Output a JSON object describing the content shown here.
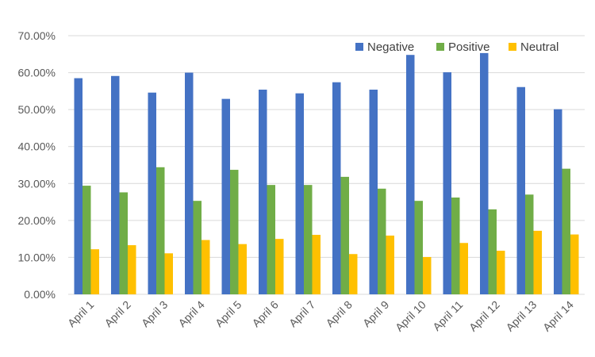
{
  "chart_data": {
    "type": "bar",
    "title": "",
    "xlabel": "",
    "ylabel": "",
    "ylim": [
      0,
      70
    ],
    "y_tick_values": [
      0,
      10,
      20,
      30,
      40,
      50,
      60,
      70
    ],
    "y_tick_labels": [
      "0.00%",
      "10.00%",
      "20.00%",
      "30.00%",
      "40.00%",
      "50.00%",
      "60.00%",
      "70.00%"
    ],
    "grid": true,
    "legend_position": "top-right",
    "categories": [
      "April 1",
      "April 2",
      "April 3",
      "April 4",
      "April 5",
      "April 6",
      "April 7",
      "April 8",
      "April 9",
      "April 10",
      "April 11",
      "April 12",
      "April 13",
      "April 14"
    ],
    "series": [
      {
        "name": "Negative",
        "color": "#4472C4",
        "values": [
          58.5,
          59.1,
          54.6,
          60.0,
          52.9,
          55.4,
          54.4,
          57.4,
          55.4,
          64.8,
          60.1,
          65.3,
          56.1,
          50.1
        ]
      },
      {
        "name": "Positive",
        "color": "#70AD47",
        "values": [
          29.4,
          27.6,
          34.4,
          25.3,
          33.7,
          29.6,
          29.6,
          31.8,
          28.6,
          25.3,
          26.2,
          23.0,
          27.0,
          34.0
        ]
      },
      {
        "name": "Neutral",
        "color": "#FFC000",
        "values": [
          12.2,
          13.3,
          11.1,
          14.7,
          13.6,
          15.0,
          16.1,
          10.9,
          15.9,
          10.1,
          13.9,
          11.8,
          17.2,
          16.2
        ]
      }
    ]
  }
}
